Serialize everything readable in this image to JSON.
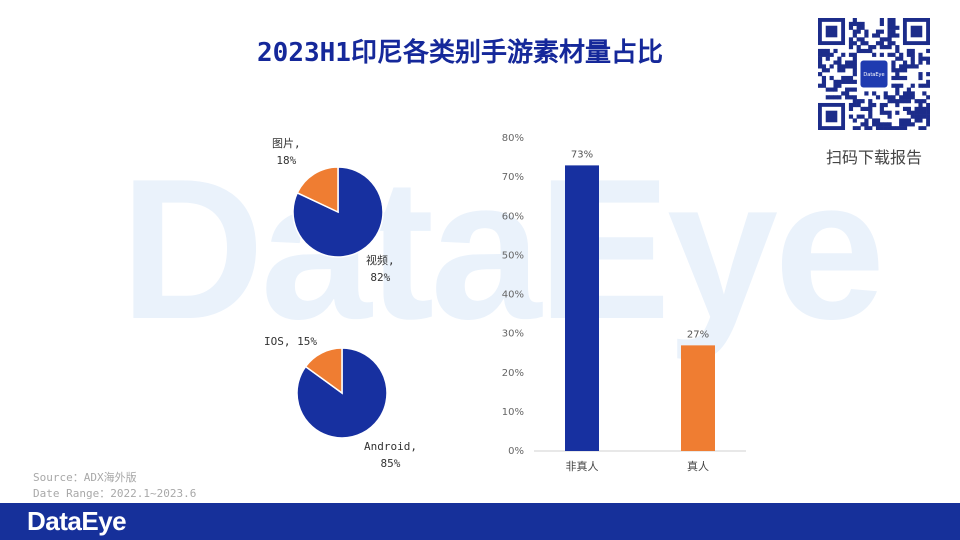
{
  "title": "2023H1印尼各类别手游素材量占比",
  "watermark": "DataEye",
  "qr": {
    "caption": "扫码下载报告",
    "center_text": "DataEye"
  },
  "source": {
    "line1": "Source：ADX海外版",
    "line2": "Date Range：2022.1~2023.6"
  },
  "footer": {
    "logo": "DataEye"
  },
  "colors": {
    "blue": "#1730a0",
    "orange": "#ef7d32",
    "title": "#15289a",
    "footer": "#16309a"
  },
  "chart_data": [
    {
      "type": "pie",
      "slices": [
        {
          "label": "图片",
          "value": 18,
          "label_text": "18%"
        },
        {
          "label": "视频",
          "value": 82,
          "label_text": "82%"
        }
      ]
    },
    {
      "type": "pie",
      "slices": [
        {
          "label": "IOS",
          "value": 15,
          "label_text": "15%"
        },
        {
          "label": "Android",
          "value": 85,
          "label_text": "85%"
        }
      ]
    },
    {
      "type": "bar",
      "categories": [
        "非真人",
        "真人"
      ],
      "values": [
        73,
        27
      ],
      "data_labels": [
        "73%",
        "27%"
      ],
      "ylim": [
        0,
        80
      ],
      "yticks": [
        "0%",
        "10%",
        "20%",
        "30%",
        "40%",
        "50%",
        "60%",
        "70%",
        "80%"
      ],
      "grid": false
    }
  ]
}
